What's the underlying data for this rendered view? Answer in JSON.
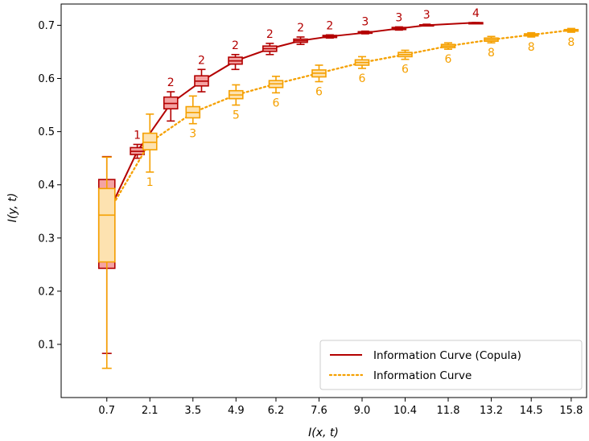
{
  "chart_data": {
    "type": "line",
    "xlabel": "I(x, t)",
    "ylabel": "I(y, t)",
    "xlim": [
      0.0,
      16.3
    ],
    "ylim": [
      0.0,
      0.74
    ],
    "xticks": [
      "0.7",
      "2.1",
      "3.5",
      "4.9",
      "6.2",
      "7.6",
      "9.0",
      "10.4",
      "11.8",
      "13.2",
      "14.5",
      "15.8"
    ],
    "yticks": [
      "0.1",
      "0.2",
      "0.3",
      "0.4",
      "0.5",
      "0.6",
      "0.7"
    ],
    "grid": false,
    "legend_position": "bottom-right",
    "series": [
      {
        "name": "Information Curve (Copula)",
        "color": "#b30000",
        "fill": "#f4a3a3",
        "line_style": "solid",
        "x": [
          0.7,
          1.69,
          2.78,
          3.78,
          4.88,
          6.0,
          7.0,
          7.95,
          9.1,
          10.2,
          11.1,
          12.7
        ],
        "y": [
          0.342,
          0.463,
          0.553,
          0.595,
          0.633,
          0.656,
          0.671,
          0.679,
          0.686,
          0.694,
          0.7,
          0.705
        ],
        "box_stats": [
          [
            0.083,
            0.243,
            0.342,
            0.41,
            0.453
          ],
          [
            0.45,
            0.457,
            0.463,
            0.47,
            0.476
          ],
          [
            0.52,
            0.543,
            0.553,
            0.565,
            0.575
          ],
          [
            0.575,
            0.586,
            0.595,
            0.605,
            0.617
          ],
          [
            0.617,
            0.627,
            0.633,
            0.64,
            0.645
          ],
          [
            0.645,
            0.651,
            0.656,
            0.661,
            0.666
          ],
          [
            0.664,
            0.668,
            0.671,
            0.674,
            0.678
          ],
          [
            0.676,
            0.677,
            0.679,
            0.681,
            0.682
          ],
          [
            0.684,
            0.685,
            0.686,
            0.688,
            0.689
          ],
          [
            0.691,
            0.692,
            0.694,
            0.696,
            0.697
          ],
          [
            0.699,
            0.7,
            0.7,
            0.701,
            0.702
          ],
          [
            0.705,
            0.705,
            0.705,
            0.705,
            0.705
          ]
        ],
        "point_labels": [
          "",
          "1",
          "2",
          "2",
          "2",
          "2",
          "2",
          "2",
          "3",
          "3",
          "3",
          "4"
        ]
      },
      {
        "name": "Information Curve",
        "color": "#f5a000",
        "fill": "#fde2b0",
        "line_style": "dotted",
        "x": [
          0.7,
          2.1,
          3.5,
          4.9,
          6.2,
          7.6,
          9.0,
          10.4,
          11.8,
          13.2,
          14.5,
          15.8
        ],
        "y": [
          0.343,
          0.48,
          0.536,
          0.569,
          0.59,
          0.61,
          0.63,
          0.645,
          0.661,
          0.673,
          0.682,
          0.691
        ],
        "box_stats": [
          [
            0.055,
            0.255,
            0.343,
            0.393,
            0.452
          ],
          [
            0.424,
            0.466,
            0.48,
            0.497,
            0.533
          ],
          [
            0.515,
            0.526,
            0.536,
            0.547,
            0.567
          ],
          [
            0.55,
            0.562,
            0.569,
            0.577,
            0.588
          ],
          [
            0.573,
            0.583,
            0.59,
            0.596,
            0.604
          ],
          [
            0.594,
            0.603,
            0.61,
            0.616,
            0.625
          ],
          [
            0.619,
            0.625,
            0.63,
            0.635,
            0.641
          ],
          [
            0.636,
            0.641,
            0.645,
            0.649,
            0.653
          ],
          [
            0.655,
            0.658,
            0.661,
            0.664,
            0.667
          ],
          [
            0.667,
            0.67,
            0.673,
            0.676,
            0.679
          ],
          [
            0.678,
            0.68,
            0.682,
            0.684,
            0.686
          ],
          [
            0.687,
            0.689,
            0.691,
            0.692,
            0.694
          ]
        ],
        "point_labels": [
          "",
          "1",
          "3",
          "5",
          "6",
          "6",
          "6",
          "6",
          "6",
          "8",
          "8",
          "8"
        ]
      }
    ]
  }
}
